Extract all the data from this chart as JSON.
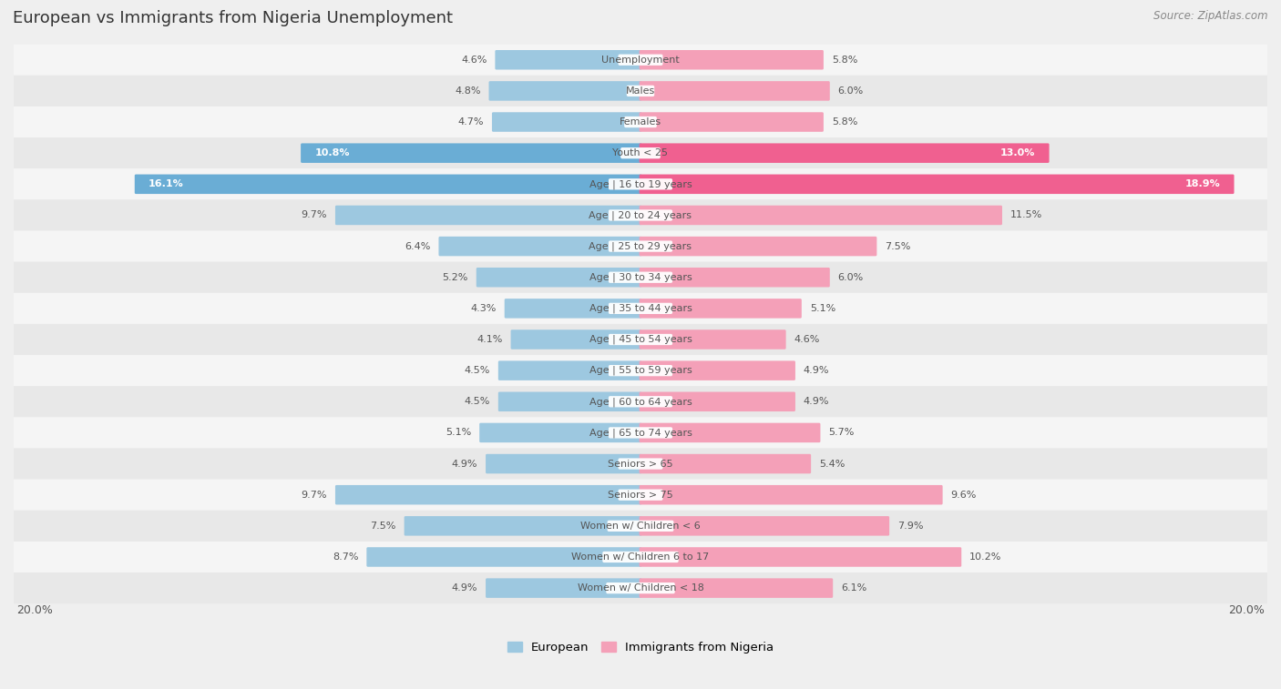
{
  "title": "European vs Immigrants from Nigeria Unemployment",
  "source": "Source: ZipAtlas.com",
  "categories": [
    "Unemployment",
    "Males",
    "Females",
    "Youth < 25",
    "Age | 16 to 19 years",
    "Age | 20 to 24 years",
    "Age | 25 to 29 years",
    "Age | 30 to 34 years",
    "Age | 35 to 44 years",
    "Age | 45 to 54 years",
    "Age | 55 to 59 years",
    "Age | 60 to 64 years",
    "Age | 65 to 74 years",
    "Seniors > 65",
    "Seniors > 75",
    "Women w/ Children < 6",
    "Women w/ Children 6 to 17",
    "Women w/ Children < 18"
  ],
  "european": [
    4.6,
    4.8,
    4.7,
    10.8,
    16.1,
    9.7,
    6.4,
    5.2,
    4.3,
    4.1,
    4.5,
    4.5,
    5.1,
    4.9,
    9.7,
    7.5,
    8.7,
    4.9
  ],
  "nigeria": [
    5.8,
    6.0,
    5.8,
    13.0,
    18.9,
    11.5,
    7.5,
    6.0,
    5.1,
    4.6,
    4.9,
    4.9,
    5.7,
    5.4,
    9.6,
    7.9,
    10.2,
    6.1
  ],
  "european_color": "#9DC8E0",
  "nigeria_color": "#F4A0B8",
  "european_highlight_color": "#6AADD5",
  "nigeria_highlight_color": "#F06090",
  "bg_color": "#EFEFEF",
  "row_light": "#F5F5F5",
  "row_dark": "#E8E8E8",
  "text_color": "#555555",
  "white": "#FFFFFF",
  "max_val": 20.0,
  "bar_height": 0.55,
  "legend_european": "European",
  "legend_nigeria": "Immigrants from Nigeria",
  "highlight_rows": [
    3,
    4
  ],
  "xlabel": "20.0%"
}
